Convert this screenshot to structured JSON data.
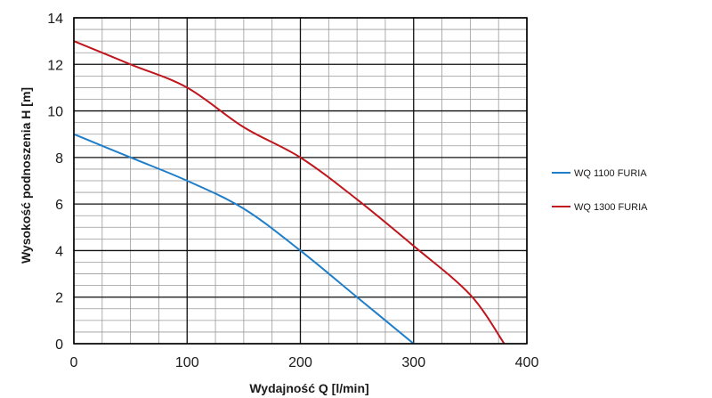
{
  "chart_data": {
    "type": "line",
    "title": "",
    "xlabel": "Wydajność Q [l/min]",
    "ylabel": "Wysokość podnoszenia H [m]",
    "xlim": [
      0,
      400
    ],
    "ylim": [
      0,
      14
    ],
    "x_ticks": [
      0,
      100,
      200,
      300,
      400
    ],
    "y_ticks": [
      0,
      2,
      4,
      6,
      8,
      10,
      12,
      14
    ],
    "x_tick_labels": [
      "0",
      "100",
      "200",
      "300",
      "400"
    ],
    "y_tick_labels": [
      "0",
      "2",
      "4",
      "6",
      "8",
      "10",
      "12",
      "14"
    ],
    "grid": true,
    "legend_position": "right",
    "series": [
      {
        "name": "WQ 1100 FURIA",
        "color": "#1f7ec9",
        "x": [
          0,
          50,
          100,
          150,
          200,
          250,
          300
        ],
        "y": [
          9,
          8,
          7,
          5.8,
          4,
          2,
          0
        ]
      },
      {
        "name": "WQ 1300 FURIA",
        "color": "#c0161d",
        "x": [
          0,
          50,
          100,
          150,
          200,
          250,
          300,
          350,
          380
        ],
        "y": [
          13,
          12,
          11,
          9.3,
          8,
          6.2,
          4.2,
          2.1,
          0
        ]
      }
    ]
  }
}
